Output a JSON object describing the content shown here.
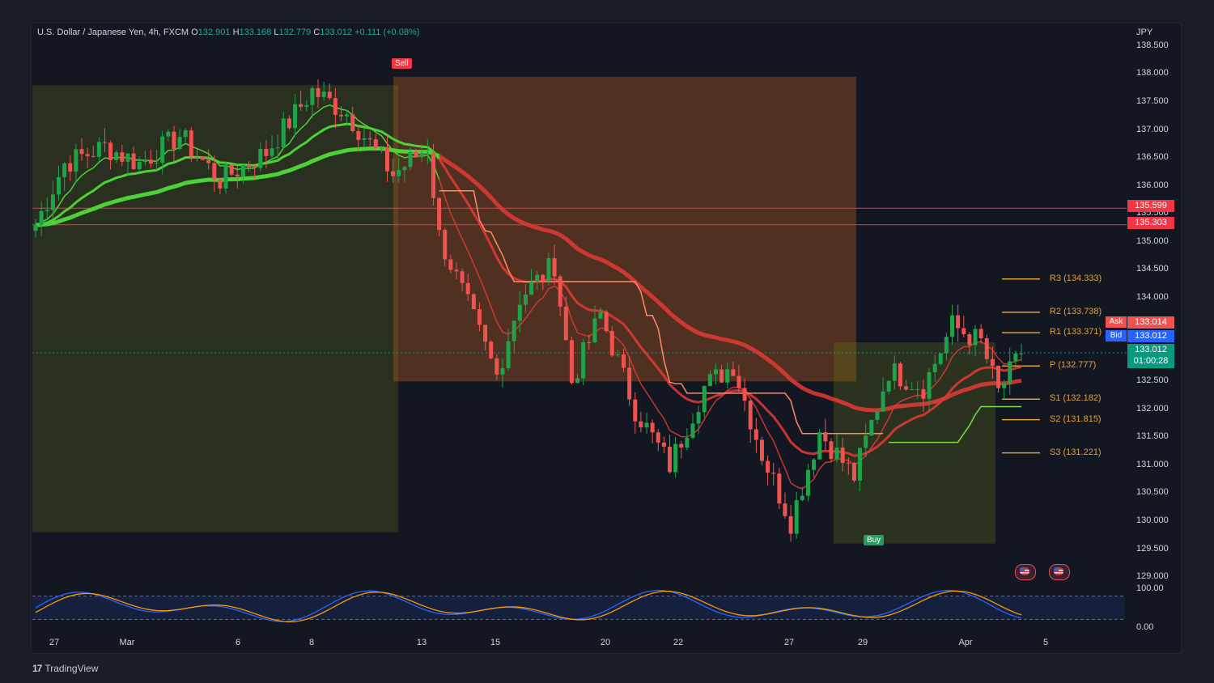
{
  "header": {
    "symbol": "U.S. Dollar / Japanese Yen, 4h, FXCM",
    "o_label": "O",
    "o": "132.901",
    "h_label": "H",
    "h": "133.168",
    "l_label": "L",
    "l": "132.779",
    "c_label": "C",
    "c": "133.012",
    "change": "+0.111 (+0.08%)"
  },
  "currency": "JPY",
  "price_boxes": {
    "line1": "135.599",
    "line2": "135.303",
    "ask_label": "Ask",
    "ask": "133.014",
    "bid_label": "Bid",
    "bid": "133.012",
    "last": "133.012",
    "countdown": "01:00:28"
  },
  "pivots": [
    {
      "label": "R3 (134.333)",
      "value": 134.333
    },
    {
      "label": "R2 (133.738)",
      "value": 133.738
    },
    {
      "label": "R1 (133.371)",
      "value": 133.371
    },
    {
      "label": "P (132.777)",
      "value": 132.777
    },
    {
      "label": "S1 (132.182)",
      "value": 132.182
    },
    {
      "label": "S2 (131.815)",
      "value": 131.815
    },
    {
      "label": "S3 (131.221)",
      "value": 131.221
    }
  ],
  "markers": {
    "sell": "Sell",
    "buy": "Buy"
  },
  "oscillator_ticks": [
    "100.00",
    "0.00"
  ],
  "footer": {
    "logo": "TradingView"
  },
  "colors": {
    "bull": "#26a69a",
    "bear": "#ef5350",
    "bull_candle": "#1fa34a",
    "ema_green": "#4cd137",
    "ema_red": "#e53935",
    "sell_zone": "#c2611f",
    "buy_zone": "#6b7a1a",
    "pivot": "#e0a040",
    "ask": "#ef5350",
    "bid": "#2962ff",
    "last": "#089981",
    "osc_k": "#2962ff",
    "osc_d": "#ff9800"
  },
  "chart_data": {
    "type": "candlestick",
    "title": "U.S. Dollar / Japanese Yen, 4h, FXCM",
    "y_unit": "JPY",
    "ylim": [
      128.9,
      138.6
    ],
    "y_ticks": [
      "138.500",
      "138.000",
      "137.500",
      "137.000",
      "136.500",
      "136.000",
      "135.500",
      "135.000",
      "134.500",
      "134.000",
      "133.500",
      "133.000",
      "132.500",
      "132.000",
      "131.500",
      "131.000",
      "130.500",
      "130.000",
      "129.500",
      "129.000"
    ],
    "x_ticks": [
      "27",
      "Mar",
      "6",
      "8",
      "13",
      "15",
      "20",
      "22",
      "27",
      "29",
      "Apr",
      "5"
    ],
    "path_points": [
      {
        "i": 0,
        "close": 135.3
      },
      {
        "i": 5,
        "close": 136.4
      },
      {
        "i": 12,
        "close": 136.7
      },
      {
        "i": 18,
        "close": 136.4
      },
      {
        "i": 25,
        "close": 136.9
      },
      {
        "i": 32,
        "close": 136.1
      },
      {
        "i": 40,
        "close": 136.6
      },
      {
        "i": 48,
        "close": 137.7
      },
      {
        "i": 54,
        "close": 137.3
      },
      {
        "i": 62,
        "close": 136.2
      },
      {
        "i": 68,
        "close": 136.7
      },
      {
        "i": 70,
        "close": 135.1
      },
      {
        "i": 76,
        "close": 133.6
      },
      {
        "i": 80,
        "close": 132.6
      },
      {
        "i": 84,
        "close": 134.0
      },
      {
        "i": 90,
        "close": 134.6
      },
      {
        "i": 93,
        "close": 132.5
      },
      {
        "i": 98,
        "close": 133.7
      },
      {
        "i": 104,
        "close": 132.0
      },
      {
        "i": 110,
        "close": 131.0
      },
      {
        "i": 116,
        "close": 132.4
      },
      {
        "i": 121,
        "close": 132.8
      },
      {
        "i": 126,
        "close": 131.2
      },
      {
        "i": 131,
        "close": 130.0
      },
      {
        "i": 136,
        "close": 131.6
      },
      {
        "i": 142,
        "close": 130.8
      },
      {
        "i": 148,
        "close": 132.7
      },
      {
        "i": 154,
        "close": 132.4
      },
      {
        "i": 159,
        "close": 133.5
      },
      {
        "i": 164,
        "close": 133.2
      },
      {
        "i": 167,
        "close": 132.3
      },
      {
        "i": 171,
        "close": 133.0
      }
    ],
    "horizontal_lines": [
      135.599,
      135.303
    ],
    "oscillator": {
      "type": "stochastic",
      "range": [
        0,
        100
      ],
      "bands": [
        80,
        20
      ]
    }
  }
}
